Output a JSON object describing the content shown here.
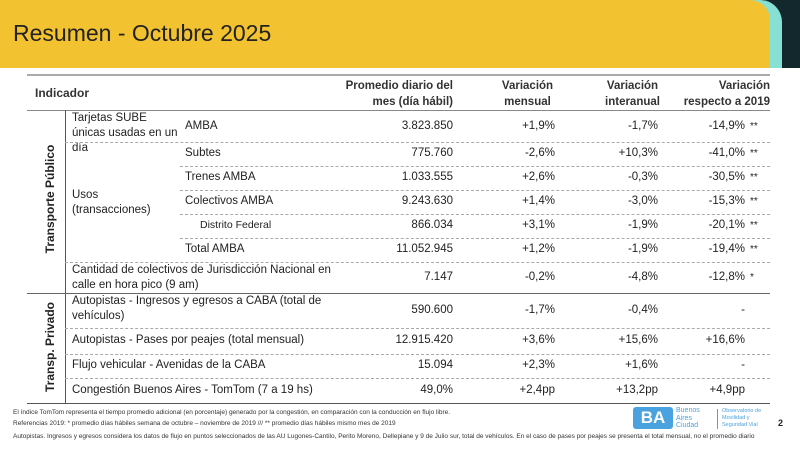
{
  "title": "Resumen - Octubre 2025",
  "colors": {
    "header": "#f2c230",
    "accent_teal": "#86e0d4",
    "accent_dark": "#13282d",
    "logo_blue": "#4aa3df"
  },
  "columns": {
    "indicador": "Indicador",
    "promedio": "Promedio diario del mes (día hábil)",
    "mensual": "Variación mensual",
    "interanual": "Variación interanual",
    "vs2019": "Variación respecto a 2019"
  },
  "groups": {
    "publico": "Transporte Público",
    "privado": "Transp. Privado"
  },
  "sub": {
    "sube": "Tarjetas SUBE únicas usadas en un día",
    "usos": "Usos (transacciones)"
  },
  "rows": [
    {
      "label": "AMBA",
      "value": "3.823.850",
      "mensual": "+1,9%",
      "interanual": "-1,7%",
      "vs2019": "-14,9%",
      "note": "**"
    },
    {
      "label": "Subtes",
      "value": "775.760",
      "mensual": "-2,6%",
      "interanual": "+10,3%",
      "vs2019": "-41,0%",
      "note": "**"
    },
    {
      "label": "Trenes AMBA",
      "value": "1.033.555",
      "mensual": "+2,6%",
      "interanual": "-0,3%",
      "vs2019": "-30,5%",
      "note": "**"
    },
    {
      "label": "Colectivos AMBA",
      "value": "9.243.630",
      "mensual": "+1,4%",
      "interanual": "-3,0%",
      "vs2019": "-15,3%",
      "note": "**"
    },
    {
      "label": "Distrito Federal",
      "value": "866.034",
      "mensual": "+3,1%",
      "interanual": "-1,9%",
      "vs2019": "-20,1%",
      "note": "**"
    },
    {
      "label": "Total AMBA",
      "value": "11.052.945",
      "mensual": "+1,2%",
      "interanual": "-1,9%",
      "vs2019": "-19,4%",
      "note": "**"
    },
    {
      "label": "Cantidad de colectivos de Jurisdicción Nacional en calle en hora pico (9 am)",
      "value": "7.147",
      "mensual": "-0,2%",
      "interanual": "-4,8%",
      "vs2019": "-12,8%",
      "note": "*"
    },
    {
      "label": "Autopistas - Ingresos y egresos a CABA (total de vehículos)",
      "value": "590.600",
      "mensual": "-1,7%",
      "interanual": "-0,4%",
      "vs2019": "-",
      "note": ""
    },
    {
      "label": "Autopistas - Pases por peajes (total mensual)",
      "value": "12.915.420",
      "mensual": "+3,6%",
      "interanual": "+15,6%",
      "vs2019": "+16,6%",
      "note": ""
    },
    {
      "label": "Flujo vehicular - Avenidas de la CABA",
      "value": "15.094",
      "mensual": "+2,3%",
      "interanual": "+1,6%",
      "vs2019": "-",
      "note": ""
    },
    {
      "label": "Congestión Buenos Aires - TomTom (7 a 19 hs)",
      "value": "49,0%",
      "mensual": "+2,4pp",
      "interanual": "+13,2pp",
      "vs2019": "+4,9pp",
      "note": ""
    }
  ],
  "footer": [
    "El índice TomTom representa el tiempo promedio adicional (en porcentaje) generado por la congestión, en comparación con la conducción en flujo libre.",
    "Referencias 2019: * promedio días hábiles semana de octubre – noviembre de 2019  /// ** promedio días hábiles mismo mes de 2019",
    "Autopistas. Ingresos y egresos considera los datos de flujo en puntos seleccionados de las AU Lugones-Cantilo, Perito Moreno, Dellepiane y 9 de Julio sur, total de vehículos. En el caso de pases por peajes se presenta el total mensual, no el promedio diario"
  ],
  "logo": {
    "ba": "BA",
    "name": "Buenos Aires Ciudad",
    "org": "Observatorio de Movilidad y Seguridad Vial"
  },
  "page": "2"
}
